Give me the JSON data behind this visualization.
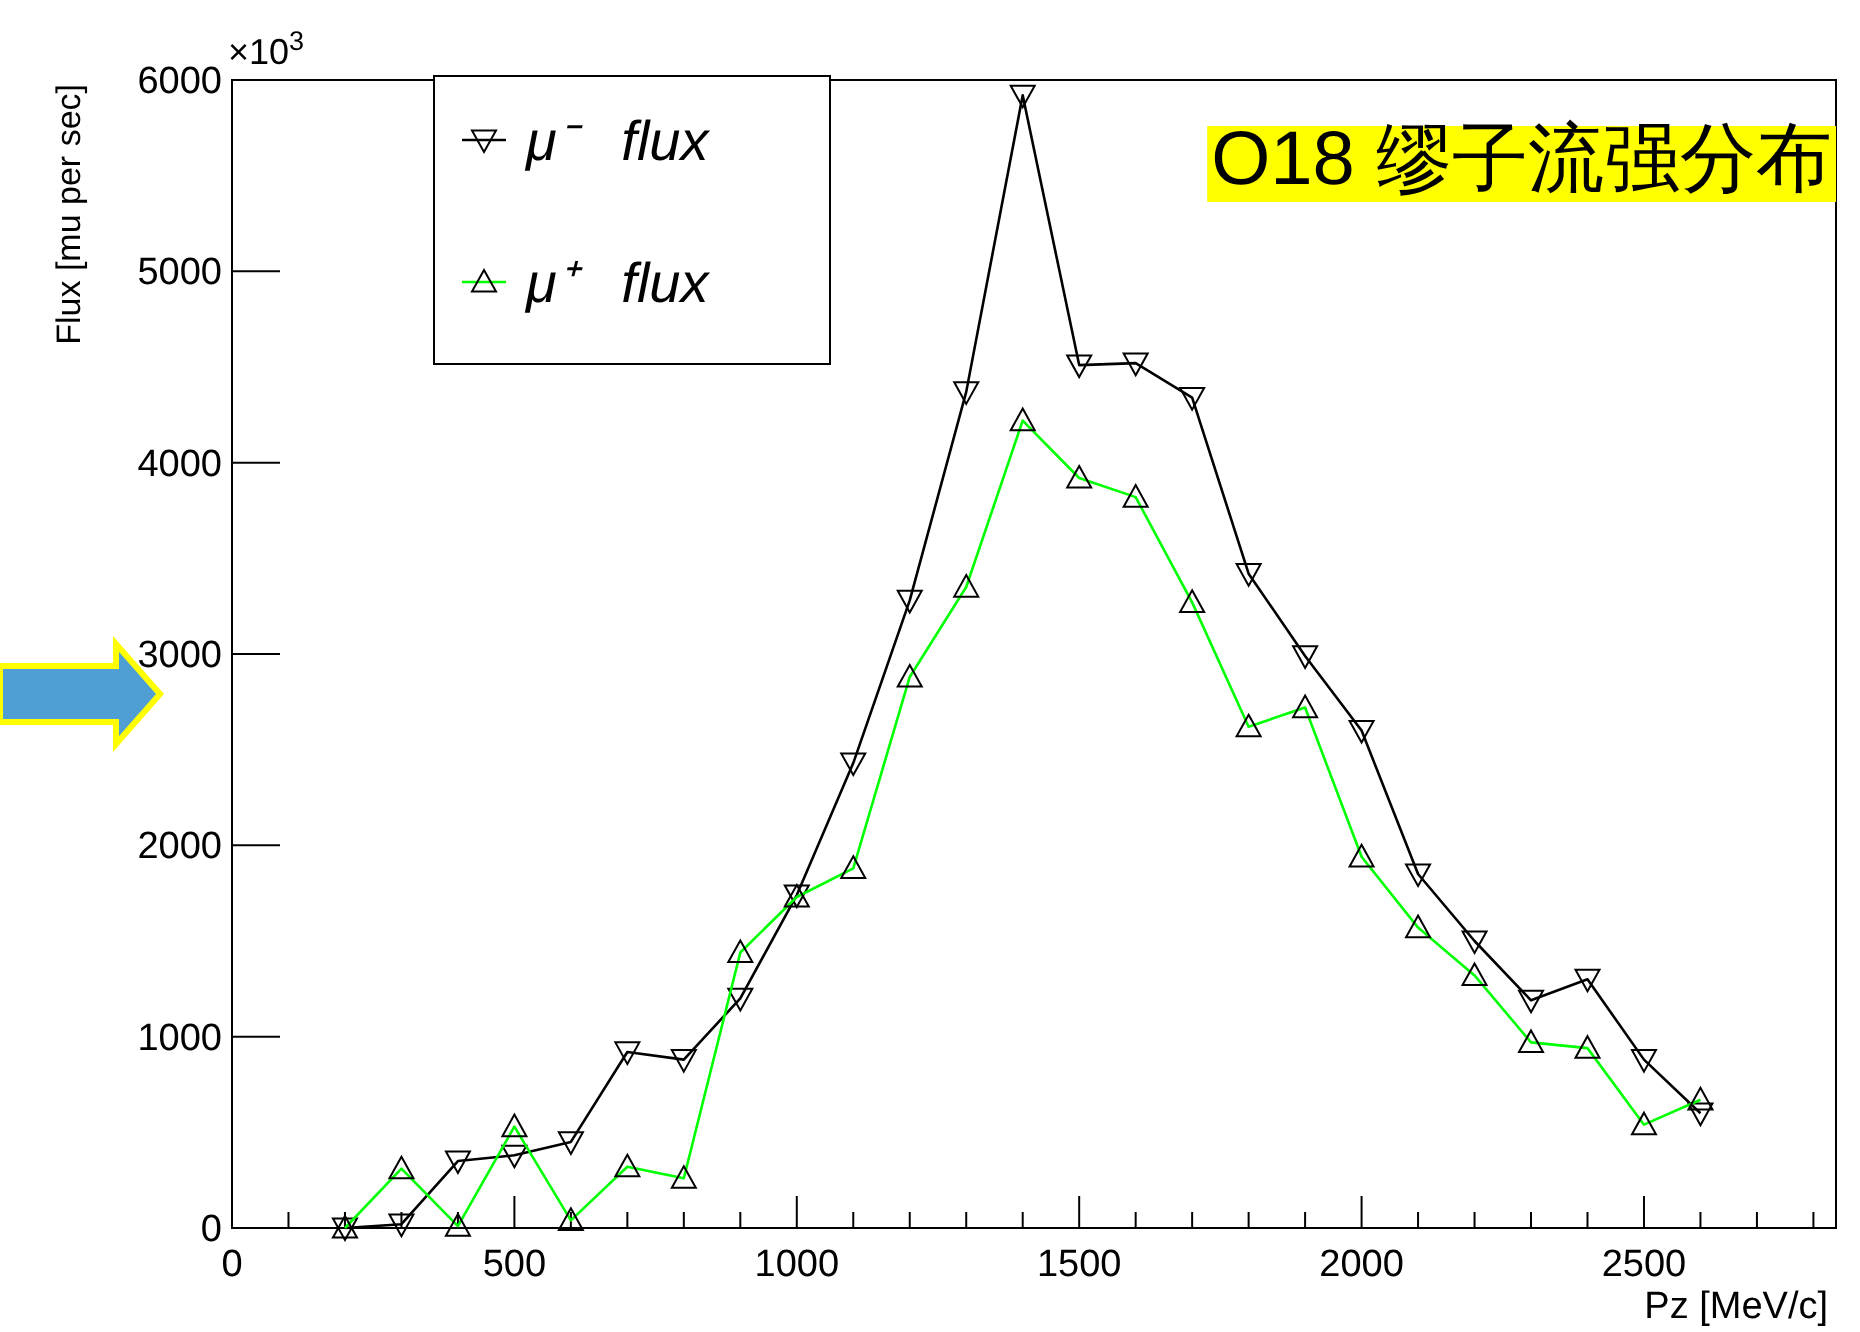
{
  "chart_data": {
    "type": "line",
    "xlabel": "Pz [MeV/c]",
    "ylabel": "Flux [mu per sec]",
    "x": [
      200,
      300,
      400,
      500,
      600,
      700,
      800,
      900,
      1000,
      1100,
      1200,
      1300,
      1400,
      1500,
      1600,
      1700,
      1800,
      1900,
      2000,
      2100,
      2200,
      2300,
      2400,
      2500,
      2600
    ],
    "series": [
      {
        "name": "μ⁻   flux",
        "color": "#000000",
        "marker": "triangle_down",
        "values": [
          0,
          20,
          350,
          380,
          450,
          920,
          880,
          1200,
          1740,
          2430,
          3280,
          4370,
          5920,
          4510,
          4520,
          4340,
          3420,
          2990,
          2600,
          1850,
          1500,
          1190,
          1300,
          880,
          600
        ]
      },
      {
        "name": "μ⁺   flux",
        "color": "#00ff00",
        "marker": "triangle",
        "values": [
          0,
          310,
          10,
          530,
          40,
          320,
          260,
          1440,
          1730,
          1880,
          2880,
          3350,
          4220,
          3920,
          3820,
          3270,
          2620,
          2720,
          1940,
          1570,
          1320,
          970,
          940,
          540,
          670
        ]
      }
    ],
    "xlim": [
      0,
      2840
    ],
    "ylim": [
      0,
      6000
    ],
    "xticks": [
      0,
      500,
      1000,
      1500,
      2000,
      2500
    ],
    "yticks": [
      0,
      1000,
      2000,
      3000,
      4000,
      5000,
      6000
    ],
    "annotations": [
      "×10$^{3}$",
      "O18 缪子流强分布"
    ],
    "legend": "top left",
    "grid": false
  }
}
